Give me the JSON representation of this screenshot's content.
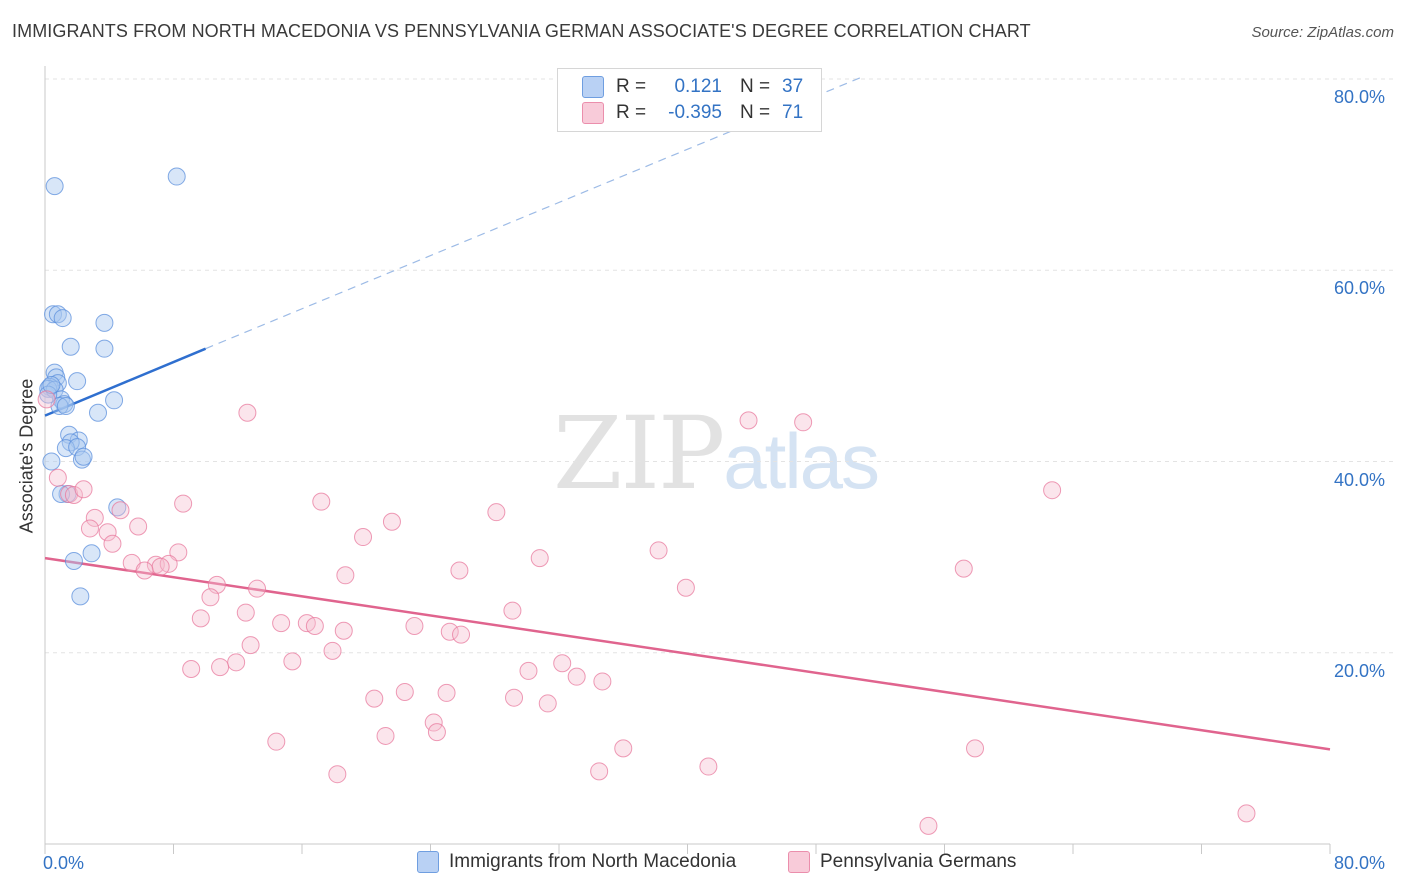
{
  "title": "IMMIGRANTS FROM NORTH MACEDONIA VS PENNSYLVANIA GERMAN ASSOCIATE'S DEGREE CORRELATION CHART",
  "source": "Source: ZipAtlas.com",
  "watermark": {
    "zip": "ZIP",
    "atlas": "atlas"
  },
  "legend": {
    "rows": [
      {
        "r_label": "R =",
        "r_value": "0.121",
        "n_label": "N =",
        "n_value": "37"
      },
      {
        "r_label": "R =",
        "r_value": "-0.395",
        "n_label": "N =",
        "n_value": "71"
      }
    ]
  },
  "colors": {
    "blue": "#5b8fdc",
    "blue_fill": "#a9c7f0",
    "blue_line": "#2f6fcf",
    "pink": "#e8799d",
    "pink_fill": "#f6bfd0",
    "pink_line": "#e0648e",
    "grid": "#e3e3e3",
    "axis_text": "#3373c4"
  },
  "chart_data": {
    "type": "scatter",
    "title": "IMMIGRANTS FROM NORTH MACEDONIA VS PENNSYLVANIA GERMAN ASSOCIATE'S DEGREE CORRELATION CHART",
    "xlabel": "",
    "ylabel": "Associate's Degree",
    "xlim": [
      0,
      80
    ],
    "ylim": [
      0,
      80
    ],
    "x_tick_labels": [
      "0.0%",
      "80.0%"
    ],
    "y_tick_labels": [
      "20.0%",
      "40.0%",
      "60.0%",
      "80.0%"
    ],
    "y_ticks": [
      20,
      40,
      60,
      80
    ],
    "grid": true,
    "legend_position": "top-center",
    "series": [
      {
        "name": "Immigrants from North Macedonia",
        "color": "#5b8fdc",
        "points": [
          [
            0.6,
            68.8
          ],
          [
            8.2,
            69.8
          ],
          [
            0.5,
            55.4
          ],
          [
            0.8,
            55.4
          ],
          [
            1.1,
            55.0
          ],
          [
            3.7,
            54.5
          ],
          [
            1.6,
            52.0
          ],
          [
            3.7,
            51.8
          ],
          [
            0.6,
            49.3
          ],
          [
            0.7,
            48.8
          ],
          [
            0.8,
            48.2
          ],
          [
            0.3,
            47.8
          ],
          [
            0.2,
            47.6
          ],
          [
            0.6,
            47.5
          ],
          [
            2.0,
            48.4
          ],
          [
            1.0,
            46.5
          ],
          [
            1.2,
            46.0
          ],
          [
            0.9,
            45.8
          ],
          [
            1.3,
            45.8
          ],
          [
            4.3,
            46.4
          ],
          [
            3.3,
            45.1
          ],
          [
            1.5,
            42.8
          ],
          [
            2.1,
            42.2
          ],
          [
            1.6,
            42.0
          ],
          [
            1.3,
            41.4
          ],
          [
            2.0,
            41.5
          ],
          [
            2.3,
            40.2
          ],
          [
            2.4,
            40.5
          ],
          [
            0.4,
            40.0
          ],
          [
            1.4,
            36.6
          ],
          [
            1.0,
            36.6
          ],
          [
            4.5,
            35.2
          ],
          [
            2.9,
            30.4
          ],
          [
            1.8,
            29.6
          ],
          [
            2.2,
            25.9
          ],
          [
            0.2,
            47.0
          ],
          [
            0.4,
            48.0
          ]
        ]
      },
      {
        "name": "Pennsylvania Germans",
        "color": "#e8799d",
        "points": [
          [
            0.1,
            46.5
          ],
          [
            0.8,
            38.3
          ],
          [
            1.5,
            36.6
          ],
          [
            1.8,
            36.5
          ],
          [
            2.4,
            37.1
          ],
          [
            12.6,
            45.1
          ],
          [
            43.8,
            44.3
          ],
          [
            47.2,
            44.1
          ],
          [
            62.7,
            37.0
          ],
          [
            8.6,
            35.6
          ],
          [
            17.2,
            35.8
          ],
          [
            4.7,
            34.9
          ],
          [
            28.1,
            34.7
          ],
          [
            3.1,
            34.1
          ],
          [
            21.6,
            33.7
          ],
          [
            2.8,
            33.0
          ],
          [
            5.8,
            33.2
          ],
          [
            3.9,
            32.6
          ],
          [
            19.8,
            32.1
          ],
          [
            4.2,
            31.4
          ],
          [
            38.2,
            30.7
          ],
          [
            8.3,
            30.5
          ],
          [
            30.8,
            29.9
          ],
          [
            5.4,
            29.4
          ],
          [
            6.9,
            29.2
          ],
          [
            7.7,
            29.3
          ],
          [
            7.2,
            29.0
          ],
          [
            6.2,
            28.6
          ],
          [
            25.8,
            28.6
          ],
          [
            18.7,
            28.1
          ],
          [
            57.2,
            28.8
          ],
          [
            10.7,
            27.1
          ],
          [
            13.2,
            26.7
          ],
          [
            39.9,
            26.8
          ],
          [
            10.3,
            25.8
          ],
          [
            12.5,
            24.2
          ],
          [
            29.1,
            24.4
          ],
          [
            9.7,
            23.6
          ],
          [
            14.7,
            23.1
          ],
          [
            16.3,
            23.1
          ],
          [
            16.8,
            22.8
          ],
          [
            23.0,
            22.8
          ],
          [
            18.6,
            22.3
          ],
          [
            25.2,
            22.2
          ],
          [
            25.9,
            21.9
          ],
          [
            12.8,
            20.8
          ],
          [
            17.9,
            20.2
          ],
          [
            11.9,
            19.0
          ],
          [
            15.4,
            19.1
          ],
          [
            32.2,
            18.9
          ],
          [
            30.1,
            18.1
          ],
          [
            9.1,
            18.3
          ],
          [
            10.9,
            18.5
          ],
          [
            33.1,
            17.5
          ],
          [
            34.7,
            17.0
          ],
          [
            22.4,
            15.9
          ],
          [
            25.0,
            15.8
          ],
          [
            29.2,
            15.3
          ],
          [
            20.5,
            15.2
          ],
          [
            31.3,
            14.7
          ],
          [
            24.2,
            12.7
          ],
          [
            24.4,
            11.7
          ],
          [
            21.2,
            11.3
          ],
          [
            14.4,
            10.7
          ],
          [
            36.0,
            10.0
          ],
          [
            57.9,
            10.0
          ],
          [
            41.3,
            8.1
          ],
          [
            18.2,
            7.3
          ],
          [
            34.5,
            7.6
          ],
          [
            55.0,
            1.9
          ],
          [
            74.8,
            3.2
          ]
        ]
      }
    ],
    "trend_lines": [
      {
        "series": "Immigrants from North Macedonia",
        "solid": [
          [
            0,
            44.8
          ],
          [
            10,
            51.8
          ]
        ],
        "dashed": [
          [
            10,
            51.8
          ],
          [
            51,
            80.3
          ]
        ]
      },
      {
        "series": "Pennsylvania Germans",
        "solid": [
          [
            0,
            29.9
          ],
          [
            80,
            9.9
          ]
        ]
      }
    ]
  },
  "bottom_legend": [
    {
      "label": "Immigrants from North Macedonia"
    },
    {
      "label": "Pennsylvania Germans"
    }
  ]
}
